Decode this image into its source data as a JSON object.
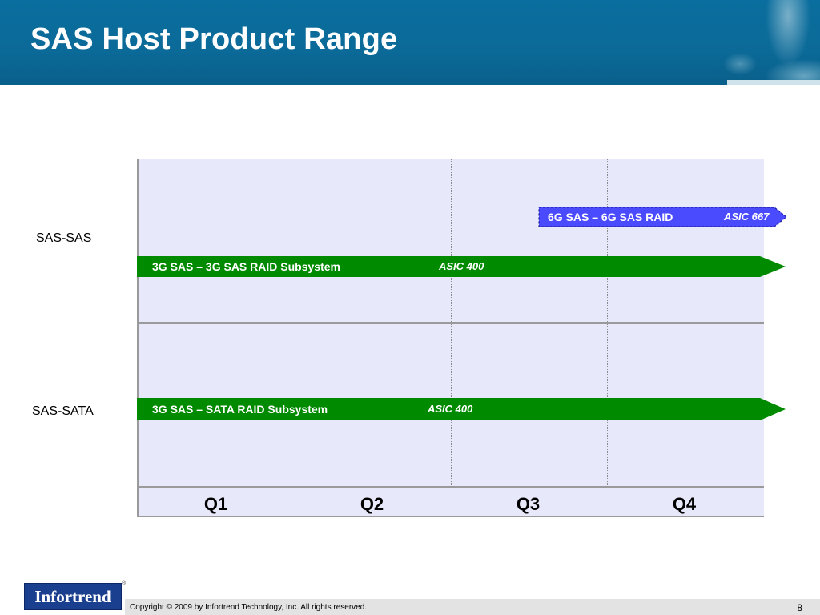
{
  "title": "SAS Host Product Range",
  "rows": [
    {
      "label": "SAS-SAS"
    },
    {
      "label": "SAS-SATA"
    }
  ],
  "quarters": [
    "Q1",
    "Q2",
    "Q3",
    "Q4"
  ],
  "bars": [
    {
      "text": "6G SAS – 6G SAS RAID",
      "asic": "ASIC 667",
      "fill": "#4a4aff",
      "style": "planned"
    },
    {
      "text": "3G SAS – 3G SAS  RAID Subsystem",
      "asic": "ASIC 400",
      "fill": "#008a00",
      "style": "current"
    },
    {
      "text": "3G SAS – SATA   RAID Subsystem",
      "asic": "ASIC 400",
      "fill": "#008a00",
      "style": "current"
    }
  ],
  "footer": {
    "logo": "Infortrend",
    "copyright": "Copyright © 2009 by Infortrend Technology, Inc. All rights reserved.",
    "page": "8"
  }
}
